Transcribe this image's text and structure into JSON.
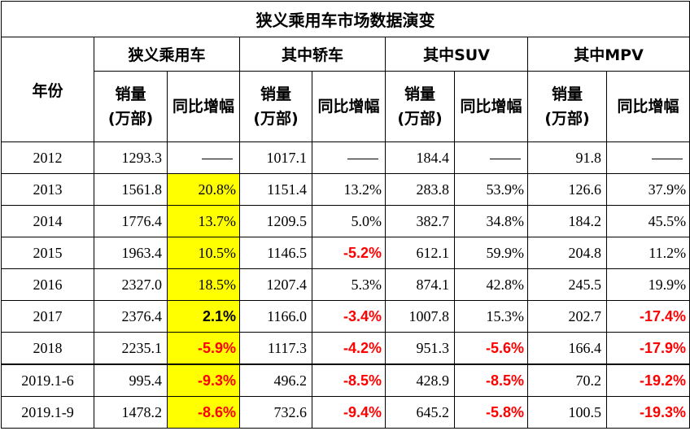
{
  "title": "狭义乘用车市场数据演变",
  "headers": {
    "year": "年份",
    "groups": [
      "狭义乘用车",
      "其中轿车",
      "其中SUV",
      "其中MPV"
    ],
    "sales_line1": "销量",
    "sales_line2": "(万部)",
    "yoy": "同比增幅"
  },
  "rows": [
    {
      "year": "2012",
      "total": "1293.3",
      "total_yoy": "",
      "sedan": "1017.1",
      "sedan_yoy": "",
      "suv": "184.4",
      "suv_yoy": "",
      "mpv": "91.8",
      "mpv_yoy": ""
    },
    {
      "year": "2013",
      "total": "1561.8",
      "total_yoy": "20.8%",
      "sedan": "1151.4",
      "sedan_yoy": "13.2%",
      "suv": "283.8",
      "suv_yoy": "53.9%",
      "mpv": "126.6",
      "mpv_yoy": "37.9%"
    },
    {
      "year": "2014",
      "total": "1776.4",
      "total_yoy": "13.7%",
      "sedan": "1209.5",
      "sedan_yoy": "5.0%",
      "suv": "382.7",
      "suv_yoy": "34.8%",
      "mpv": "184.2",
      "mpv_yoy": "45.5%"
    },
    {
      "year": "2015",
      "total": "1963.4",
      "total_yoy": "10.5%",
      "sedan": "1146.5",
      "sedan_yoy": "-5.2%",
      "suv": "612.1",
      "suv_yoy": "59.9%",
      "mpv": "204.8",
      "mpv_yoy": "11.2%"
    },
    {
      "year": "2016",
      "total": "2327.0",
      "total_yoy": "18.5%",
      "sedan": "1207.4",
      "sedan_yoy": "5.3%",
      "suv": "874.1",
      "suv_yoy": "42.8%",
      "mpv": "245.5",
      "mpv_yoy": "19.9%"
    },
    {
      "year": "2017",
      "total": "2376.4",
      "total_yoy": "2.1%",
      "sedan": "1166.0",
      "sedan_yoy": "-3.4%",
      "suv": "1007.8",
      "suv_yoy": "15.3%",
      "mpv": "202.7",
      "mpv_yoy": "-17.4%"
    },
    {
      "year": "2018",
      "total": "2235.1",
      "total_yoy": "-5.9%",
      "sedan": "1117.3",
      "sedan_yoy": "-4.2%",
      "suv": "951.3",
      "suv_yoy": "-5.6%",
      "mpv": "166.4",
      "mpv_yoy": "-17.9%"
    },
    {
      "year": "2019.1-6",
      "total": "995.4",
      "total_yoy": "-9.3%",
      "sedan": "496.2",
      "sedan_yoy": "-8.5%",
      "suv": "428.9",
      "suv_yoy": "-8.5%",
      "mpv": "70.2",
      "mpv_yoy": "-19.2%"
    },
    {
      "year": "2019.1-9",
      "total": "1478.2",
      "total_yoy": "-8.6%",
      "sedan": "732.6",
      "sedan_yoy": "-9.4%",
      "suv": "645.2",
      "suv_yoy": "-5.8%",
      "mpv": "100.5",
      "mpv_yoy": "-19.3%"
    }
  ],
  "colors": {
    "highlight": "#ffff00",
    "negative": "#ff0000"
  }
}
